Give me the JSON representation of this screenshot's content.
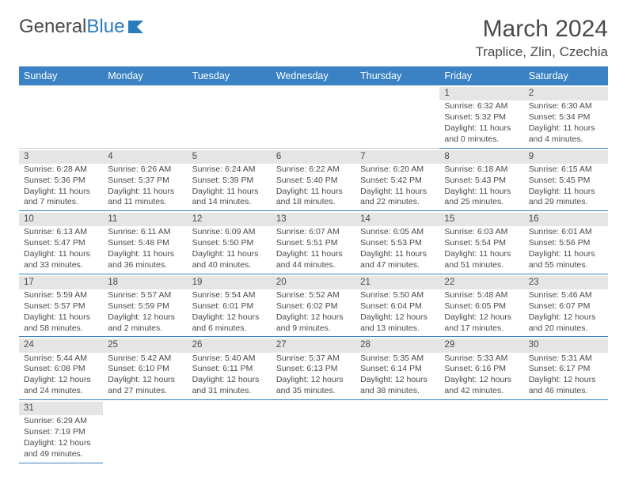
{
  "brand": {
    "name_part1": "General",
    "name_part2": "Blue"
  },
  "title": "March 2024",
  "location": "Traplice, Zlin, Czechia",
  "colors": {
    "header_bg": "#3a82c4",
    "header_text": "#ffffff",
    "daynum_bg": "#e5e5e5",
    "cell_border": "#3a82c4",
    "text": "#4a4a4a",
    "brand_accent": "#2a7bbf"
  },
  "weekdays": [
    "Sunday",
    "Monday",
    "Tuesday",
    "Wednesday",
    "Thursday",
    "Friday",
    "Saturday"
  ],
  "weeks": [
    [
      null,
      null,
      null,
      null,
      null,
      {
        "n": "1",
        "sunrise": "Sunrise: 6:32 AM",
        "sunset": "Sunset: 5:32 PM",
        "day1": "Daylight: 11 hours",
        "day2": "and 0 minutes."
      },
      {
        "n": "2",
        "sunrise": "Sunrise: 6:30 AM",
        "sunset": "Sunset: 5:34 PM",
        "day1": "Daylight: 11 hours",
        "day2": "and 4 minutes."
      }
    ],
    [
      {
        "n": "3",
        "sunrise": "Sunrise: 6:28 AM",
        "sunset": "Sunset: 5:36 PM",
        "day1": "Daylight: 11 hours",
        "day2": "and 7 minutes."
      },
      {
        "n": "4",
        "sunrise": "Sunrise: 6:26 AM",
        "sunset": "Sunset: 5:37 PM",
        "day1": "Daylight: 11 hours",
        "day2": "and 11 minutes."
      },
      {
        "n": "5",
        "sunrise": "Sunrise: 6:24 AM",
        "sunset": "Sunset: 5:39 PM",
        "day1": "Daylight: 11 hours",
        "day2": "and 14 minutes."
      },
      {
        "n": "6",
        "sunrise": "Sunrise: 6:22 AM",
        "sunset": "Sunset: 5:40 PM",
        "day1": "Daylight: 11 hours",
        "day2": "and 18 minutes."
      },
      {
        "n": "7",
        "sunrise": "Sunrise: 6:20 AM",
        "sunset": "Sunset: 5:42 PM",
        "day1": "Daylight: 11 hours",
        "day2": "and 22 minutes."
      },
      {
        "n": "8",
        "sunrise": "Sunrise: 6:18 AM",
        "sunset": "Sunset: 5:43 PM",
        "day1": "Daylight: 11 hours",
        "day2": "and 25 minutes."
      },
      {
        "n": "9",
        "sunrise": "Sunrise: 6:15 AM",
        "sunset": "Sunset: 5:45 PM",
        "day1": "Daylight: 11 hours",
        "day2": "and 29 minutes."
      }
    ],
    [
      {
        "n": "10",
        "sunrise": "Sunrise: 6:13 AM",
        "sunset": "Sunset: 5:47 PM",
        "day1": "Daylight: 11 hours",
        "day2": "and 33 minutes."
      },
      {
        "n": "11",
        "sunrise": "Sunrise: 6:11 AM",
        "sunset": "Sunset: 5:48 PM",
        "day1": "Daylight: 11 hours",
        "day2": "and 36 minutes."
      },
      {
        "n": "12",
        "sunrise": "Sunrise: 6:09 AM",
        "sunset": "Sunset: 5:50 PM",
        "day1": "Daylight: 11 hours",
        "day2": "and 40 minutes."
      },
      {
        "n": "13",
        "sunrise": "Sunrise: 6:07 AM",
        "sunset": "Sunset: 5:51 PM",
        "day1": "Daylight: 11 hours",
        "day2": "and 44 minutes."
      },
      {
        "n": "14",
        "sunrise": "Sunrise: 6:05 AM",
        "sunset": "Sunset: 5:53 PM",
        "day1": "Daylight: 11 hours",
        "day2": "and 47 minutes."
      },
      {
        "n": "15",
        "sunrise": "Sunrise: 6:03 AM",
        "sunset": "Sunset: 5:54 PM",
        "day1": "Daylight: 11 hours",
        "day2": "and 51 minutes."
      },
      {
        "n": "16",
        "sunrise": "Sunrise: 6:01 AM",
        "sunset": "Sunset: 5:56 PM",
        "day1": "Daylight: 11 hours",
        "day2": "and 55 minutes."
      }
    ],
    [
      {
        "n": "17",
        "sunrise": "Sunrise: 5:59 AM",
        "sunset": "Sunset: 5:57 PM",
        "day1": "Daylight: 11 hours",
        "day2": "and 58 minutes."
      },
      {
        "n": "18",
        "sunrise": "Sunrise: 5:57 AM",
        "sunset": "Sunset: 5:59 PM",
        "day1": "Daylight: 12 hours",
        "day2": "and 2 minutes."
      },
      {
        "n": "19",
        "sunrise": "Sunrise: 5:54 AM",
        "sunset": "Sunset: 6:01 PM",
        "day1": "Daylight: 12 hours",
        "day2": "and 6 minutes."
      },
      {
        "n": "20",
        "sunrise": "Sunrise: 5:52 AM",
        "sunset": "Sunset: 6:02 PM",
        "day1": "Daylight: 12 hours",
        "day2": "and 9 minutes."
      },
      {
        "n": "21",
        "sunrise": "Sunrise: 5:50 AM",
        "sunset": "Sunset: 6:04 PM",
        "day1": "Daylight: 12 hours",
        "day2": "and 13 minutes."
      },
      {
        "n": "22",
        "sunrise": "Sunrise: 5:48 AM",
        "sunset": "Sunset: 6:05 PM",
        "day1": "Daylight: 12 hours",
        "day2": "and 17 minutes."
      },
      {
        "n": "23",
        "sunrise": "Sunrise: 5:46 AM",
        "sunset": "Sunset: 6:07 PM",
        "day1": "Daylight: 12 hours",
        "day2": "and 20 minutes."
      }
    ],
    [
      {
        "n": "24",
        "sunrise": "Sunrise: 5:44 AM",
        "sunset": "Sunset: 6:08 PM",
        "day1": "Daylight: 12 hours",
        "day2": "and 24 minutes."
      },
      {
        "n": "25",
        "sunrise": "Sunrise: 5:42 AM",
        "sunset": "Sunset: 6:10 PM",
        "day1": "Daylight: 12 hours",
        "day2": "and 27 minutes."
      },
      {
        "n": "26",
        "sunrise": "Sunrise: 5:40 AM",
        "sunset": "Sunset: 6:11 PM",
        "day1": "Daylight: 12 hours",
        "day2": "and 31 minutes."
      },
      {
        "n": "27",
        "sunrise": "Sunrise: 5:37 AM",
        "sunset": "Sunset: 6:13 PM",
        "day1": "Daylight: 12 hours",
        "day2": "and 35 minutes."
      },
      {
        "n": "28",
        "sunrise": "Sunrise: 5:35 AM",
        "sunset": "Sunset: 6:14 PM",
        "day1": "Daylight: 12 hours",
        "day2": "and 38 minutes."
      },
      {
        "n": "29",
        "sunrise": "Sunrise: 5:33 AM",
        "sunset": "Sunset: 6:16 PM",
        "day1": "Daylight: 12 hours",
        "day2": "and 42 minutes."
      },
      {
        "n": "30",
        "sunrise": "Sunrise: 5:31 AM",
        "sunset": "Sunset: 6:17 PM",
        "day1": "Daylight: 12 hours",
        "day2": "and 46 minutes."
      }
    ],
    [
      {
        "n": "31",
        "sunrise": "Sunrise: 6:29 AM",
        "sunset": "Sunset: 7:19 PM",
        "day1": "Daylight: 12 hours",
        "day2": "and 49 minutes."
      },
      null,
      null,
      null,
      null,
      null,
      null
    ]
  ]
}
